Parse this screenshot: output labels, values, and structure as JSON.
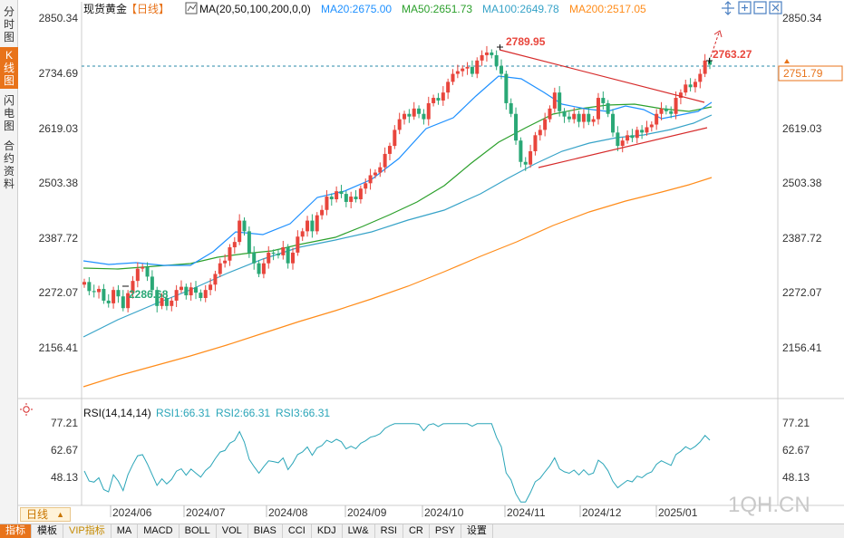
{
  "side_tabs": [
    "分时图",
    "K线图",
    "闪电图",
    "合约资料"
  ],
  "header": {
    "title": "现货黄金",
    "period": "【日线】",
    "ma_label": "MA(20,50,100,200,0,0)",
    "ma_values": [
      {
        "text": "MA20:2675.00",
        "color": "#1e90ff"
      },
      {
        "text": "MA50:2651.73",
        "color": "#2ca02c"
      },
      {
        "text": "MA100:2649.78",
        "color": "#37a3c8"
      },
      {
        "text": "MA200:2517.05",
        "color": "#ff8c1a"
      }
    ]
  },
  "toolbar_icons": [
    "arrow-move-icon",
    "zoom-in-icon",
    "zoom-out-icon",
    "close-icon"
  ],
  "rsi_header": {
    "label": "RSI(14,14,14)",
    "values": [
      {
        "text": "RSI1:66.31",
        "color": "#2aa5b8"
      },
      {
        "text": "RSI2:66.31",
        "color": "#2aa5b8"
      },
      {
        "text": "RSI3:66.31",
        "color": "#2aa5b8"
      }
    ]
  },
  "price_axis": [
    "2850.34",
    "2734.69",
    "2619.03",
    "2503.38",
    "2387.72",
    "2272.07",
    "2156.41"
  ],
  "rsi_axis": [
    "77.21",
    "62.67",
    "48.13"
  ],
  "time_axis": [
    "2024/06",
    "2024/07",
    "2024/08",
    "2024/09",
    "2024/10",
    "2024/11",
    "2024/12",
    "2025/01"
  ],
  "current_price": "2751.79",
  "period_selector": "日线",
  "watermark": "1QH.CN",
  "bottom_tabs": [
    "指标",
    "模板",
    "VIP指标",
    "MA",
    "MACD",
    "BOLL",
    "VOL",
    "BIAS",
    "CCI",
    "KDJ",
    "LW&",
    "RSI",
    "CR",
    "PSY",
    "设置"
  ],
  "colors": {
    "up": "#e8453c",
    "down": "#2aa876",
    "ma20": "#1e90ff",
    "ma50": "#2ca02c",
    "ma100": "#37a3c8",
    "ma200": "#ff8c1a",
    "trend": "#d62a2a",
    "accent": "#e8731a"
  },
  "chart_data": {
    "type": "candlestick",
    "title": "现货黄金",
    "ylim": [
      2130,
      2870
    ],
    "annotations": [
      {
        "label": "2789.95",
        "x": "2024/10/31",
        "y": 2789.95,
        "kind": "high"
      },
      {
        "label": "2286.68",
        "x": "2024/05/30",
        "y": 2286.68,
        "kind": "low"
      },
      {
        "label": "2763.27",
        "x": "2025/01/24",
        "y": 2763.27,
        "kind": "target"
      }
    ],
    "ohlc_close_approx": [
      2345,
      2328,
      2326,
      2332,
      2310,
      2305,
      2330,
      2318,
      2296,
      2324,
      2347,
      2370,
      2373,
      2355,
      2330,
      2300,
      2315,
      2300,
      2310,
      2330,
      2336,
      2320,
      2335,
      2325,
      2315,
      2330,
      2340,
      2360,
      2380,
      2385,
      2410,
      2420,
      2460,
      2440,
      2400,
      2380,
      2360,
      2380,
      2400,
      2398,
      2395,
      2410,
      2380,
      2400,
      2430,
      2440,
      2460,
      2440,
      2470,
      2480,
      2505,
      2500,
      2515,
      2510,
      2495,
      2505,
      2500,
      2520,
      2530,
      2545,
      2550,
      2560,
      2585,
      2600,
      2630,
      2650,
      2660,
      2655,
      2670,
      2660,
      2650,
      2680,
      2690,
      2685,
      2700,
      2720,
      2735,
      2740,
      2745,
      2748,
      2735,
      2760,
      2770,
      2775,
      2770,
      2750,
      2735,
      2680,
      2660,
      2610,
      2570,
      2565,
      2590,
      2620,
      2630,
      2650,
      2670,
      2700,
      2665,
      2655,
      2650,
      2660,
      2645,
      2660,
      2645,
      2650,
      2690,
      2680,
      2660,
      2625,
      2600,
      2610,
      2620,
      2615,
      2630,
      2625,
      2635,
      2640,
      2660,
      2670,
      2665,
      2660,
      2690,
      2700,
      2715,
      2710,
      2720,
      2735,
      2760,
      2752
    ]
  }
}
